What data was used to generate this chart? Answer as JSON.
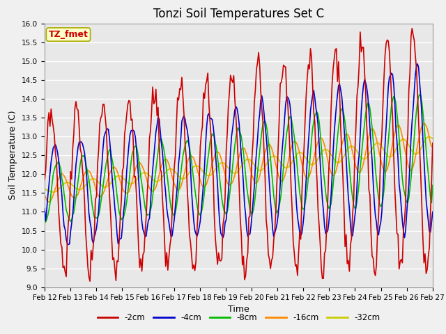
{
  "title": "Tonzi Soil Temperatures Set C",
  "xlabel": "Time",
  "ylabel": "Soil Temperature (C)",
  "ylim": [
    9.0,
    16.0
  ],
  "yticks": [
    9.0,
    9.5,
    10.0,
    10.5,
    11.0,
    11.5,
    12.0,
    12.5,
    13.0,
    13.5,
    14.0,
    14.5,
    15.0,
    15.5,
    16.0
  ],
  "xtick_labels": [
    "Feb 12",
    "Feb 13",
    "Feb 14",
    "Feb 15",
    "Feb 16",
    "Feb 17",
    "Feb 18",
    "Feb 19",
    "Feb 20",
    "Feb 21",
    "Feb 22",
    "Feb 23",
    "Feb 24",
    "Feb 25",
    "Feb 26",
    "Feb 27"
  ],
  "series": {
    "-2cm": {
      "color": "#cc0000",
      "lw": 1.2
    },
    "-4cm": {
      "color": "#0000cc",
      "lw": 1.2
    },
    "-8cm": {
      "color": "#00bb00",
      "lw": 1.2
    },
    "-16cm": {
      "color": "#ff8800",
      "lw": 1.2
    },
    "-32cm": {
      "color": "#cccc00",
      "lw": 1.2
    }
  },
  "legend_label": "TZ_fmet",
  "legend_color": "#cc0000",
  "legend_bg": "#ffffcc",
  "legend_border": "#aaaa00",
  "plot_bg": "#e8e8e8",
  "fig_bg": "#f0f0f0",
  "grid_color": "#ffffff",
  "title_fontsize": 12,
  "tick_fontsize": 7.5,
  "label_fontsize": 9
}
